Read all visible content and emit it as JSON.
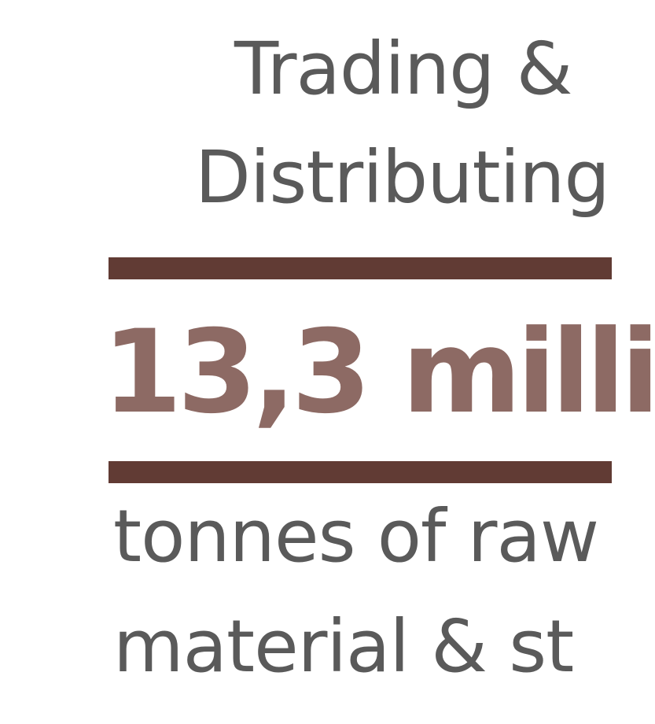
{
  "heading": {
    "line1": "Trading &",
    "line2": "Distributing"
  },
  "figure": {
    "value": "13,3 milli"
  },
  "caption": {
    "line1": "tonnes of raw",
    "line2": "material & st"
  },
  "colors": {
    "rule": "#613b34",
    "figure": "#8d6a64",
    "text": "#5a5a5a",
    "background": "#ffffff"
  }
}
